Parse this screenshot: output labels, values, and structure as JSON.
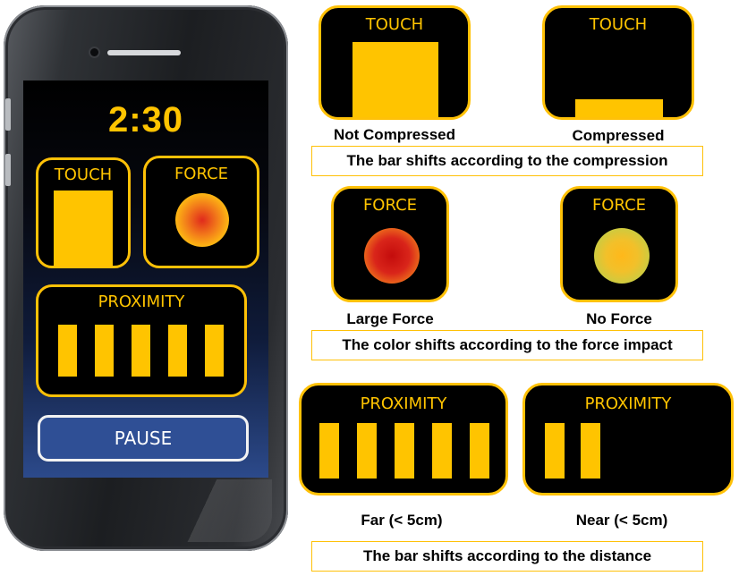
{
  "phone": {
    "timer": "2:30",
    "touch_title": "TOUCH",
    "force_title": "FORCE",
    "proximity_title": "PROXIMITY",
    "proximity_bars": 5,
    "pause_label": "PAUSE"
  },
  "touch_section": {
    "left": {
      "title": "TOUCH",
      "label": "Not Compressed",
      "fill_fraction": 0.85
    },
    "right": {
      "title": "TOUCH",
      "label": "Compressed",
      "fill_fraction": 0.22
    },
    "caption": "The bar shifts according to the compression"
  },
  "force_section": {
    "left": {
      "title": "FORCE",
      "label": "Large Force"
    },
    "right": {
      "title": "FORCE",
      "label": "No Force"
    },
    "caption": "The color shifts according to the force impact"
  },
  "proximity_section": {
    "left": {
      "title": "PROXIMITY",
      "label": "Far (< 5cm)",
      "bars": 5
    },
    "right": {
      "title": "PROXIMITY",
      "label": "Near (< 5cm)",
      "bars": 2
    },
    "caption": "The bar shifts according to the distance"
  },
  "colors": {
    "accent": "#ffc400",
    "panel_bg": "#000000",
    "button_bg": "#2f4f95"
  }
}
